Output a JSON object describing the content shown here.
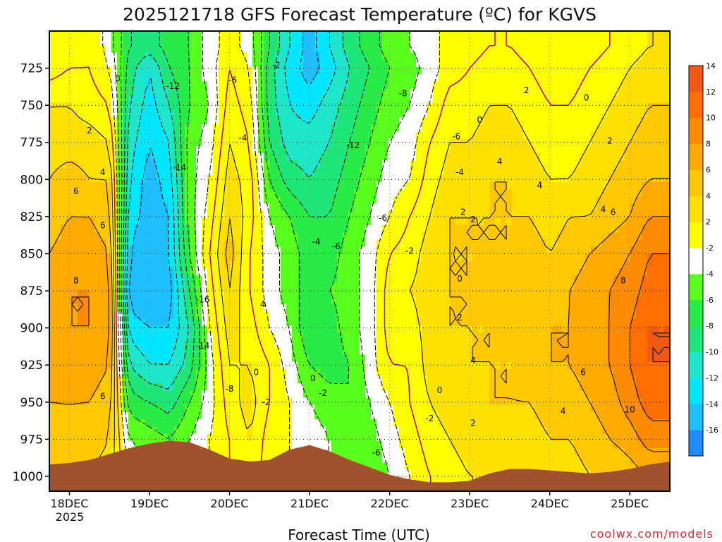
{
  "chart_data": {
    "type": "heatmap",
    "title": "2025121718 GFS Forecast Temperature (ºC) for KGVS",
    "xlabel": "Forecast Time (UTC)",
    "ylabel": "",
    "credit": "coolwx.com/models",
    "x_ticks": [
      "18DEC",
      "19DEC",
      "20DEC",
      "21DEC",
      "22DEC",
      "23DEC",
      "24DEC",
      "25DEC"
    ],
    "x_year": "2025",
    "x_range_hours": [
      -6,
      180
    ],
    "y_ticks": [
      725,
      750,
      775,
      800,
      825,
      850,
      875,
      900,
      925,
      950,
      975,
      1000
    ],
    "y_range": [
      700,
      1010
    ],
    "y_inverted": true,
    "colorbar_levels": [
      -16,
      -14,
      -12,
      -10,
      -8,
      -6,
      -4,
      -2,
      2,
      4,
      6,
      8,
      10,
      12,
      14
    ],
    "colorbar_colors": [
      "#1e8cff",
      "#1ebeff",
      "#00e6ff",
      "#1ee6c8",
      "#1ee678",
      "#28eb46",
      "#5aff1e",
      "#ffffff",
      "#ffff00",
      "#ffe100",
      "#ffc800",
      "#ffaa00",
      "#ff8c00",
      "#ff6e00",
      "#f05a14"
    ],
    "temperature_columns": {
      "hours": [
        -6,
        0,
        6,
        12,
        18,
        24,
        30,
        36,
        42,
        48,
        54,
        60,
        66,
        72,
        78,
        84,
        90,
        96,
        102,
        108,
        114,
        120,
        126,
        132,
        138,
        144,
        150,
        156,
        162,
        168,
        174,
        180
      ],
      "levels": [
        710,
        725,
        750,
        775,
        800,
        825,
        850,
        875,
        900,
        925,
        950,
        975,
        1000
      ],
      "values": [
        [
          -1,
          -1,
          2,
          3,
          4,
          5,
          6,
          7,
          8,
          7,
          6,
          5,
          4
        ],
        [
          -1,
          0,
          2,
          3,
          5,
          6,
          7,
          8,
          8,
          7,
          6,
          6,
          5
        ],
        [
          0,
          0,
          1,
          3,
          4,
          6,
          7,
          8,
          8,
          7,
          6,
          5,
          4
        ],
        [
          -3,
          -2,
          0,
          2,
          4,
          5,
          6,
          7,
          7,
          6,
          5,
          4,
          3
        ],
        [
          -8,
          -9,
          -10,
          -11,
          -12,
          -13,
          -14,
          -15,
          -13,
          -10,
          -7,
          -4,
          -2
        ],
        [
          -9,
          -12,
          -13,
          -14,
          -15,
          -15,
          -16,
          -16,
          -14,
          -12,
          -8,
          -5,
          -3
        ],
        [
          -7,
          -8,
          -10,
          -12,
          -13,
          -14,
          -14,
          -15,
          -14,
          -12,
          -9,
          -6,
          -4
        ],
        [
          -6,
          -6,
          -6,
          -5,
          -5,
          -5,
          -6,
          -8,
          -10,
          -9,
          -6,
          -4,
          -3
        ],
        [
          -3,
          -3,
          -4,
          -3,
          -2,
          -1,
          0,
          -1,
          -2,
          -3,
          -3,
          -2,
          -2
        ],
        [
          -1,
          0,
          1,
          2,
          3,
          4,
          5,
          4,
          3,
          2,
          1,
          0,
          0
        ],
        [
          -3,
          -2,
          -1,
          0,
          1,
          1,
          0,
          0,
          1,
          2,
          3,
          2,
          1
        ],
        [
          -8,
          -9,
          -9,
          -8,
          -6,
          -4,
          -3,
          -3,
          -2,
          0,
          0,
          -1,
          -1
        ],
        [
          -12,
          -13,
          -12,
          -11,
          -9,
          -6,
          -5,
          -5,
          -4,
          -3,
          -2,
          -2,
          -2
        ],
        [
          -15,
          -15,
          -13,
          -11,
          -10,
          -8,
          -7,
          -7,
          -8,
          -6,
          -4,
          -3,
          -3
        ],
        [
          -12,
          -13,
          -11,
          -10,
          -9,
          -8,
          -7,
          -6,
          -7,
          -7,
          -5,
          -4,
          -4
        ],
        [
          -9,
          -10,
          -9,
          -8,
          -7,
          -6,
          -5,
          -5,
          -5,
          -6,
          -6,
          -6,
          -6
        ],
        [
          -7,
          -8,
          -7,
          -6,
          -5,
          -4,
          -3,
          -3,
          -3,
          -3,
          -4,
          -5,
          -6
        ],
        [
          -5,
          -6,
          -5,
          -4,
          -3,
          -2,
          0,
          1,
          1,
          0,
          -2,
          -3,
          -4
        ],
        [
          -4,
          -5,
          -4,
          -3,
          -2,
          0,
          1,
          2,
          1,
          0,
          0,
          -1,
          -2
        ],
        [
          -3,
          -3,
          -2,
          0,
          1,
          2,
          3,
          3,
          3,
          3,
          2,
          1,
          0
        ],
        [
          -1,
          -1,
          1,
          2,
          3,
          4,
          4,
          4,
          4,
          3,
          3,
          2,
          1
        ],
        [
          -1,
          0,
          1,
          2,
          3,
          4,
          4,
          4,
          4,
          4,
          3,
          3,
          2
        ],
        [
          0,
          1,
          2,
          3,
          4,
          4,
          4,
          5,
          4,
          4,
          4,
          3,
          2
        ],
        [
          0,
          1,
          2,
          3,
          4,
          4,
          4,
          5,
          5,
          4,
          4,
          3,
          2
        ],
        [
          -1,
          0,
          1,
          2,
          3,
          4,
          5,
          5,
          5,
          5,
          4,
          3,
          2
        ],
        [
          -1,
          -1,
          0,
          1,
          2,
          3,
          4,
          5,
          6,
          6,
          5,
          4,
          3
        ],
        [
          -1,
          -1,
          0,
          1,
          2,
          4,
          5,
          6,
          6,
          6,
          5,
          4,
          3
        ],
        [
          -1,
          0,
          1,
          2,
          3,
          4,
          6,
          7,
          7,
          7,
          6,
          5,
          4
        ],
        [
          0,
          1,
          2,
          3,
          4,
          5,
          7,
          8,
          8,
          8,
          7,
          6,
          4
        ],
        [
          1,
          2,
          3,
          4,
          5,
          6,
          8,
          9,
          10,
          10,
          9,
          7,
          5
        ],
        [
          2,
          3,
          4,
          5,
          6,
          8,
          10,
          11,
          12,
          12,
          11,
          9,
          6
        ],
        [
          2,
          3,
          4,
          5,
          6,
          8,
          10,
          11,
          12,
          12,
          11,
          9,
          6
        ]
      ]
    },
    "terrain_pressure": {
      "hours": [
        -6,
        0,
        6,
        12,
        18,
        24,
        30,
        36,
        42,
        48,
        54,
        60,
        66,
        72,
        78,
        84,
        90,
        96,
        102,
        108,
        114,
        120,
        126,
        132,
        138,
        144,
        150,
        156,
        162,
        168,
        174,
        180
      ],
      "values": [
        992,
        991,
        989,
        985,
        981,
        978,
        976,
        977,
        982,
        988,
        990,
        989,
        982,
        979,
        983,
        989,
        994,
        999,
        1002,
        1004,
        1004,
        1003,
        998,
        995,
        995,
        996,
        997,
        998,
        997,
        995,
        992,
        990
      ]
    },
    "contour_labels": [
      {
        "t": "0",
        "h": 14.5,
        "p": 732
      },
      {
        "t": "2",
        "h": 6,
        "p": 767
      },
      {
        "t": "4",
        "h": 10,
        "p": 795
      },
      {
        "t": "6",
        "h": 2,
        "p": 808
      },
      {
        "t": "6",
        "h": 10,
        "p": 831
      },
      {
        "t": "8",
        "h": 2,
        "p": 868
      },
      {
        "t": "6",
        "h": 10,
        "p": 946
      },
      {
        "t": "-12",
        "h": 31,
        "p": 737
      },
      {
        "t": "-14",
        "h": 33,
        "p": 792
      },
      {
        "t": "-16",
        "h": 40,
        "p": 881
      },
      {
        "t": "-14",
        "h": 40,
        "p": 912
      },
      {
        "t": "-8",
        "h": 48,
        "p": 941
      },
      {
        "t": "-6",
        "h": 49,
        "p": 733
      },
      {
        "t": "-4",
        "h": 52,
        "p": 772
      },
      {
        "t": "-2",
        "h": 62,
        "p": 723
      },
      {
        "t": "4",
        "h": 58,
        "p": 884
      },
      {
        "t": "0",
        "h": 56,
        "p": 930
      },
      {
        "t": "-2",
        "h": 59,
        "p": 950
      },
      {
        "t": "0",
        "h": 73,
        "p": 934
      },
      {
        "t": "-4",
        "h": 74,
        "p": 842
      },
      {
        "t": "-6",
        "h": 80,
        "p": 845
      },
      {
        "t": "-2",
        "h": 76,
        "p": 944
      },
      {
        "t": "-12",
        "h": 85,
        "p": 777
      },
      {
        "t": "-8",
        "h": 100,
        "p": 742
      },
      {
        "t": "-6",
        "h": 94,
        "p": 826
      },
      {
        "t": "-6",
        "h": 92,
        "p": 984
      },
      {
        "t": "-2",
        "h": 102,
        "p": 848
      },
      {
        "t": "-2",
        "h": 108,
        "p": 961
      },
      {
        "t": "-6",
        "h": 116,
        "p": 771
      },
      {
        "t": "-4",
        "h": 117,
        "p": 795
      },
      {
        "t": "0",
        "h": 123,
        "p": 760
      },
      {
        "t": "0",
        "h": 111,
        "p": 942
      },
      {
        "t": "0",
        "h": 117,
        "p": 867
      },
      {
        "t": "2",
        "h": 118,
        "p": 822
      },
      {
        "t": "2",
        "h": 117,
        "p": 893
      },
      {
        "t": "2",
        "h": 121,
        "p": 827
      },
      {
        "t": "4",
        "h": 129,
        "p": 788
      },
      {
        "t": "4",
        "h": 121,
        "p": 922
      },
      {
        "t": "2",
        "h": 121,
        "p": 964
      },
      {
        "t": "2",
        "h": 137,
        "p": 740
      },
      {
        "t": "0",
        "h": 155,
        "p": 745
      },
      {
        "t": "4",
        "h": 141,
        "p": 804
      },
      {
        "t": "2",
        "h": 162,
        "p": 774
      },
      {
        "t": "4",
        "h": 160,
        "p": 820
      },
      {
        "t": "6",
        "h": 163,
        "p": 822
      },
      {
        "t": "8",
        "h": 166,
        "p": 868
      },
      {
        "t": "6",
        "h": 154,
        "p": 930
      },
      {
        "t": "4",
        "h": 148,
        "p": 956
      },
      {
        "t": "10",
        "h": 168,
        "p": 955
      }
    ]
  }
}
